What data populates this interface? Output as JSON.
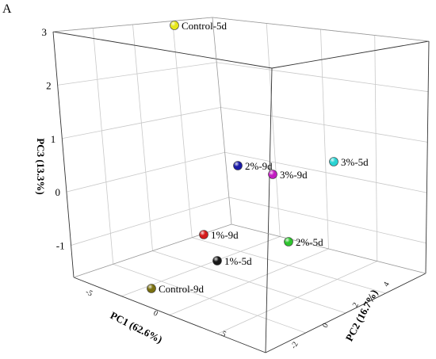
{
  "panel_label": "A",
  "chart_data": {
    "type": "scatter",
    "title": "",
    "z_axis": {
      "label": "PC3 (13.3%)",
      "ticks": [
        "3",
        "2",
        "1",
        "0",
        "-1"
      ]
    },
    "x_axis": {
      "label": "PC1 (62.6%)",
      "ticks": [
        "-5",
        "0",
        "5"
      ]
    },
    "y_axis": {
      "label": "PC2 (16.7%)",
      "ticks": [
        "-2",
        "0",
        "2",
        "4"
      ]
    },
    "points": [
      {
        "label": "Control-5d",
        "color": "#e6e619",
        "pc3": 3.1
      },
      {
        "label": "2%-9d",
        "color": "#1a1aa6",
        "pc3": 0.5
      },
      {
        "label": "3%-9d",
        "color": "#c21ec2",
        "pc3": 0.4
      },
      {
        "label": "3%-5d",
        "color": "#2ad3d3",
        "pc3": 0.6
      },
      {
        "label": "1%-9d",
        "color": "#d41c1c",
        "pc3": -0.8
      },
      {
        "label": "2%-5d",
        "color": "#2ec42e",
        "pc3": -0.9
      },
      {
        "label": "1%-5d",
        "color": "#1a1a1a",
        "pc3": -1.3
      },
      {
        "label": "Control-9d",
        "color": "#7a7010",
        "pc3": -1.8
      }
    ]
  }
}
